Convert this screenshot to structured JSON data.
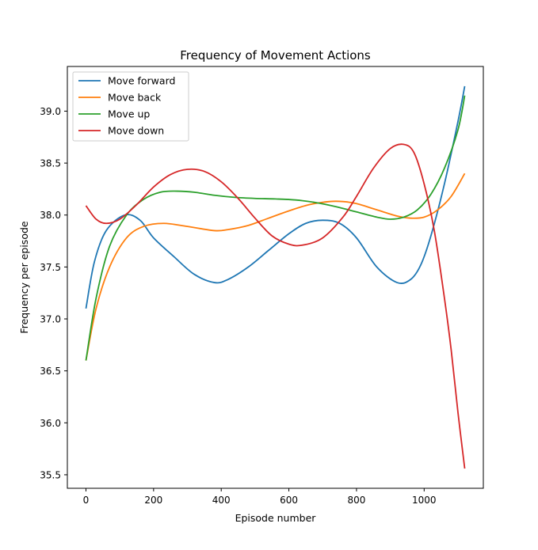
{
  "chart_data": {
    "type": "line",
    "title": "Frequency of Movement Actions",
    "xlabel": "Episode number",
    "ylabel": "Frequency per episode",
    "xlim": [
      -55,
      1175
    ],
    "ylim": [
      35.37,
      39.43
    ],
    "xticks": [
      0,
      200,
      400,
      600,
      800,
      1000
    ],
    "yticks": [
      35.5,
      36.0,
      36.5,
      37.0,
      37.5,
      38.0,
      38.5,
      39.0
    ],
    "ytick_labels": [
      "35.5",
      "36.0",
      "36.5",
      "37.0",
      "37.5",
      "38.0",
      "38.5",
      "39.0"
    ],
    "grid": false,
    "legend_position": "top-left",
    "series": [
      {
        "name": "Move forward",
        "color": "#1f77b4",
        "x": [
          0,
          25,
          60,
          115,
          160,
          200,
          260,
          320,
          380,
          420,
          480,
          540,
          600,
          650,
          700,
          750,
          800,
          860,
          920,
          960,
          990,
          1020,
          1060,
          1100,
          1120
        ],
        "y": [
          37.1,
          37.55,
          37.85,
          38.0,
          37.95,
          37.78,
          37.6,
          37.43,
          37.35,
          37.38,
          37.5,
          37.66,
          37.82,
          37.92,
          37.95,
          37.92,
          37.78,
          37.5,
          37.35,
          37.38,
          37.52,
          37.8,
          38.3,
          38.9,
          39.24
        ]
      },
      {
        "name": "Move back",
        "color": "#ff7f0e",
        "x": [
          0,
          30,
          70,
          120,
          170,
          230,
          300,
          380,
          420,
          480,
          540,
          600,
          660,
          720,
          760,
          800,
          860,
          920,
          960,
          1000,
          1040,
          1080,
          1120
        ],
        "y": [
          36.6,
          37.1,
          37.5,
          37.78,
          37.89,
          37.92,
          37.89,
          37.85,
          37.86,
          37.9,
          37.97,
          38.04,
          38.1,
          38.13,
          38.13,
          38.11,
          38.05,
          37.99,
          37.97,
          37.98,
          38.05,
          38.18,
          38.4
        ]
      },
      {
        "name": "Move up",
        "color": "#2ca02c",
        "x": [
          0,
          30,
          70,
          120,
          170,
          220,
          270,
          320,
          380,
          440,
          500,
          560,
          620,
          680,
          740,
          800,
          860,
          900,
          940,
          980,
          1020,
          1060,
          1100,
          1120
        ],
        "y": [
          36.6,
          37.2,
          37.7,
          38.0,
          38.15,
          38.22,
          38.23,
          38.22,
          38.19,
          38.17,
          38.16,
          38.155,
          38.145,
          38.12,
          38.08,
          38.03,
          37.98,
          37.96,
          37.98,
          38.05,
          38.2,
          38.45,
          38.82,
          39.15
        ]
      },
      {
        "name": "Move down",
        "color": "#d62728",
        "x": [
          0,
          30,
          60,
          100,
          150,
          200,
          250,
          300,
          350,
          400,
          450,
          500,
          550,
          600,
          640,
          700,
          760,
          800,
          850,
          900,
          940,
          970,
          1000,
          1030,
          1060,
          1080,
          1100,
          1120
        ],
        "y": [
          38.09,
          37.96,
          37.92,
          37.96,
          38.1,
          38.27,
          38.39,
          38.44,
          38.42,
          38.32,
          38.16,
          37.97,
          37.8,
          37.72,
          37.71,
          37.78,
          37.98,
          38.18,
          38.45,
          38.64,
          38.68,
          38.6,
          38.3,
          37.85,
          37.2,
          36.7,
          36.1,
          35.56
        ]
      }
    ]
  }
}
